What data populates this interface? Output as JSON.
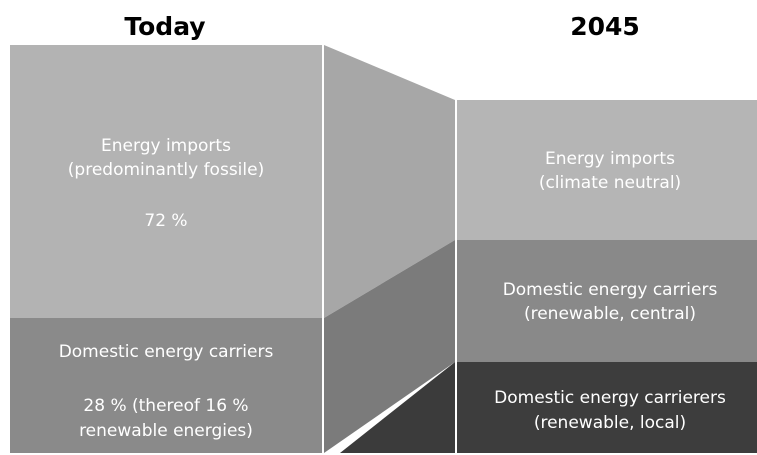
{
  "columns": [
    {
      "title": "Today",
      "blocks": [
        {
          "lines": [
            "Energy imports",
            "(predominantly fossile)"
          ],
          "share": "72 %"
        },
        {
          "lines": [
            "Domestic energy carriers"
          ],
          "share_lines": [
            "28 % (thereof 16 %",
            "renewable energies)"
          ]
        }
      ]
    },
    {
      "title": "2045",
      "blocks": [
        {
          "lines": [
            "Energy imports",
            "(climate neutral)"
          ]
        },
        {
          "lines": [
            "Domestic energy carriers",
            "(renewable, central)"
          ]
        },
        {
          "lines": [
            "Domestic energy carrierers",
            "(renewable, local)"
          ]
        }
      ]
    }
  ]
}
